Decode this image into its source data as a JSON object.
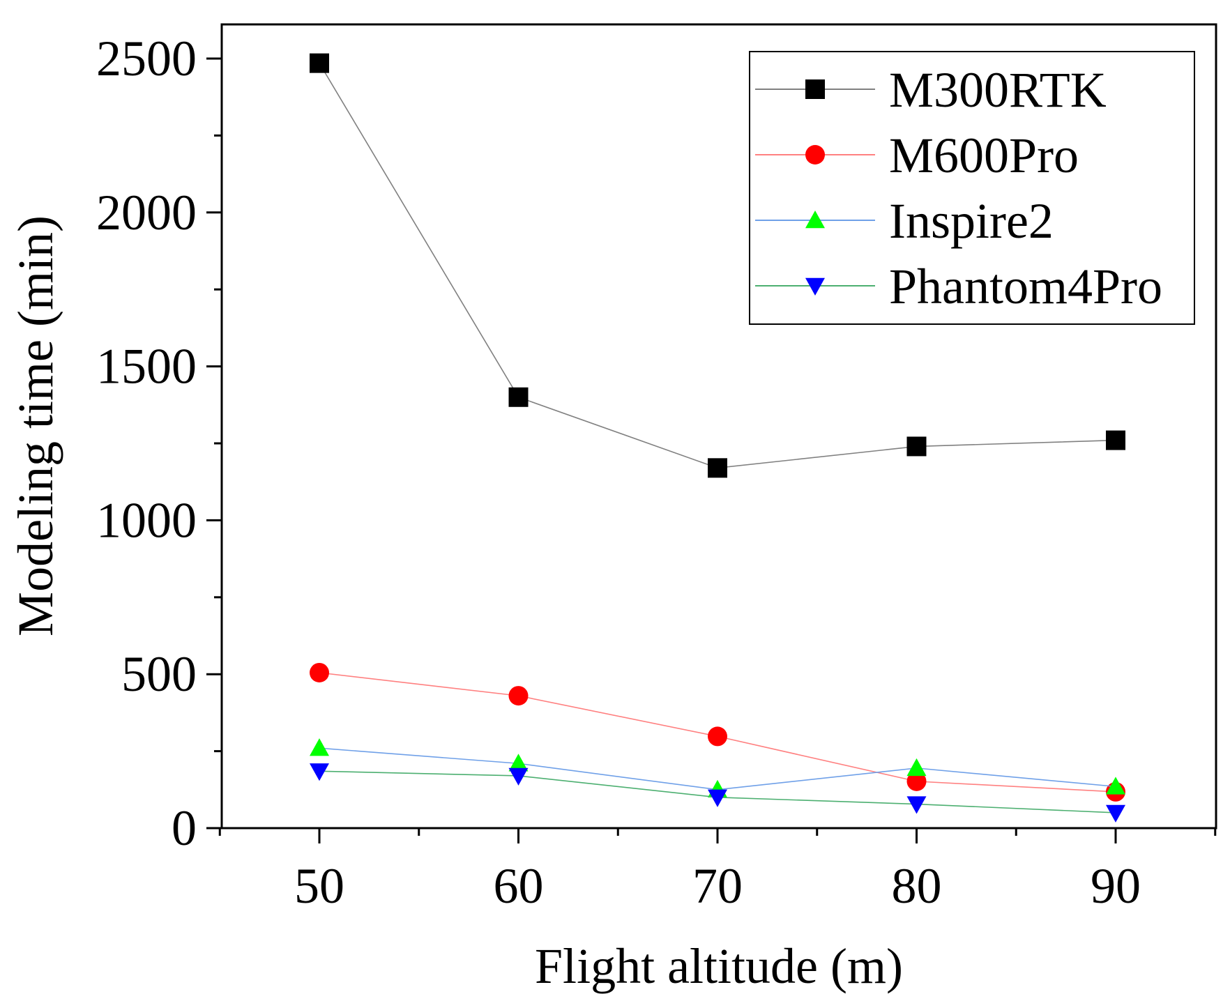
{
  "chart_data": {
    "type": "line",
    "title": "",
    "xlabel": "Flight altitude (m)",
    "ylabel": "Modeling time (min)",
    "x": [
      50,
      60,
      70,
      80,
      90
    ],
    "xlim": [
      45,
      95
    ],
    "ylim": [
      0,
      2600
    ],
    "xticks": [
      50,
      60,
      70,
      80,
      90
    ],
    "yticks": [
      0,
      500,
      1000,
      1500,
      2000,
      2500
    ],
    "grid": false,
    "legend_position": "top-right",
    "series": [
      {
        "name": "M300RTK",
        "marker": "square",
        "line_color": "#808080",
        "marker_color": "#000000",
        "values": [
          2485,
          1400,
          1170,
          1240,
          1260
        ]
      },
      {
        "name": "M600Pro",
        "marker": "circle",
        "line_color": "#ff8080",
        "marker_color": "#ff0000",
        "values": [
          505,
          430,
          298,
          152,
          118
        ]
      },
      {
        "name": "Inspire2",
        "marker": "triangle-up",
        "line_color": "#6fa0e8",
        "marker_color": "#00ff00",
        "values": [
          260,
          210,
          125,
          195,
          135
        ]
      },
      {
        "name": "Phantom4Pro",
        "marker": "triangle-down",
        "line_color": "#4caf70",
        "marker_color": "#0000ff",
        "values": [
          185,
          170,
          100,
          78,
          50
        ]
      }
    ]
  }
}
